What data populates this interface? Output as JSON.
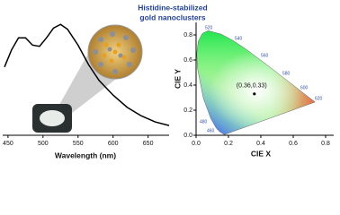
{
  "chart_data": [
    {
      "type": "line",
      "annotation": [
        "Histidine-stabilized",
        "gold nanoclusters"
      ],
      "xlabel": "Wavelength (nm)",
      "x": [
        445,
        455,
        465,
        475,
        485,
        495,
        505,
        515,
        525,
        535,
        550,
        565,
        580,
        600,
        620,
        640,
        660,
        680
      ],
      "values": [
        0.56,
        0.7,
        0.8,
        0.8,
        0.74,
        0.73,
        0.8,
        0.88,
        0.91,
        0.87,
        0.74,
        0.58,
        0.45,
        0.33,
        0.23,
        0.16,
        0.11,
        0.08
      ],
      "color": "#000000",
      "xlim": [
        445,
        680
      ],
      "ylim": [
        0,
        1
      ],
      "xticks": [
        450,
        500,
        550,
        600,
        650
      ]
    },
    {
      "type": "scatter",
      "xlabel": "CIE X",
      "ylabel": "CIE Y",
      "x": [
        0.36
      ],
      "values": [
        0.33
      ],
      "value_labels": [
        "(0.36,0.33)"
      ],
      "color": "#000000",
      "xlim": [
        0,
        0.85
      ],
      "ylim": [
        0,
        0.9
      ],
      "xticks": [
        {
          "value": 0,
          "label": "0.0"
        },
        0.2,
        0.4,
        0.6,
        0.8
      ],
      "yticks": [
        {
          "value": 0,
          "label": "0.0"
        },
        0.2,
        0.4,
        0.6,
        0.8
      ],
      "locus_labels": [
        "520",
        "540",
        "560",
        "580",
        "600",
        "620",
        "480",
        "460"
      ]
    }
  ]
}
